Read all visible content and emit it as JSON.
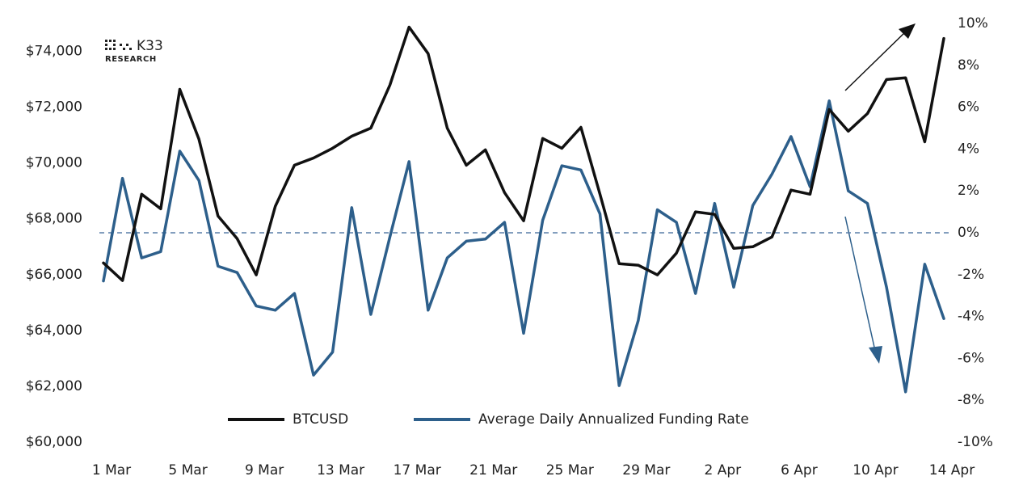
{
  "chart_data": {
    "type": "line",
    "logo": {
      "name": "K33",
      "subtitle": "RESEARCH"
    },
    "categories": [
      "1 Mar",
      null,
      null,
      null,
      "5 Mar",
      null,
      null,
      null,
      "9 Mar",
      null,
      null,
      null,
      "13 Mar",
      null,
      null,
      null,
      "17 Mar",
      null,
      null,
      null,
      "21 Mar",
      null,
      null,
      null,
      "25 Mar",
      null,
      null,
      null,
      "29 Mar",
      null,
      null,
      null,
      "2 Apr",
      null,
      null,
      null,
      "6 Apr",
      null,
      null,
      null,
      "10 Apr",
      null,
      null,
      null,
      "14 Apr"
    ],
    "series": [
      {
        "name": "BTCUSD",
        "color": "#111111",
        "axis": "y",
        "values": [
          66420,
          65790,
          68880,
          68360,
          72640,
          70850,
          68100,
          67290,
          65990,
          68450,
          69920,
          70180,
          70530,
          70960,
          71250,
          72790,
          74870,
          73920,
          71250,
          69920,
          70470,
          68940,
          67930,
          70880,
          70530,
          71280,
          68880,
          66390,
          66340,
          65990,
          66770,
          68250,
          68160,
          66940,
          67000,
          67350,
          69030,
          68880,
          71920,
          71140,
          71770,
          72990,
          73050,
          70760,
          74460
        ]
      },
      {
        "name": "Average Daily Annualized Funding Rate",
        "color": "#2d5f8b",
        "axis": "y2",
        "values": [
          -2.3,
          2.6,
          -1.2,
          -0.9,
          3.9,
          2.5,
          -1.6,
          -1.9,
          -3.5,
          -3.7,
          -2.9,
          -6.8,
          -5.7,
          1.2,
          -3.9,
          -0.2,
          3.4,
          -3.7,
          -1.2,
          -0.4,
          -0.3,
          0.5,
          -4.8,
          0.6,
          3.2,
          3.0,
          0.9,
          -7.3,
          -4.2,
          1.1,
          0.5,
          -2.9,
          1.4,
          -2.6,
          1.3,
          2.8,
          4.6,
          2.2,
          6.3,
          2.0,
          1.4,
          -2.6,
          -7.6,
          -1.5,
          -4.1
        ]
      }
    ],
    "ylim": [
      60000,
      75000
    ],
    "yticks": [
      {
        "value": 60000,
        "label": "$60,000"
      },
      {
        "value": 62000,
        "label": "$62,000"
      },
      {
        "value": 64000,
        "label": "$64,000"
      },
      {
        "value": 66000,
        "label": "$66,000"
      },
      {
        "value": 68000,
        "label": "$68,000"
      },
      {
        "value": 70000,
        "label": "$70,000"
      },
      {
        "value": 72000,
        "label": "$72,000"
      },
      {
        "value": 74000,
        "label": "$74,000"
      }
    ],
    "y2lim": [
      -10,
      10
    ],
    "y2ticks": [
      {
        "value": -10,
        "label": "-10%"
      },
      {
        "value": -8,
        "label": "-8%"
      },
      {
        "value": -6,
        "label": "-6%"
      },
      {
        "value": -4,
        "label": "-4%"
      },
      {
        "value": -2,
        "label": "-2%"
      },
      {
        "value": 0,
        "label": "0%"
      },
      {
        "value": 2,
        "label": "2%"
      },
      {
        "value": 4,
        "label": "4%"
      },
      {
        "value": 6,
        "label": "6%"
      },
      {
        "value": 8,
        "label": "8%"
      },
      {
        "value": 10,
        "label": "10%"
      }
    ],
    "reference_line": {
      "axis": "y2",
      "value": 0,
      "style": "dashed",
      "color": "#5a7ea8"
    },
    "grid": false,
    "legend": "bottom"
  }
}
